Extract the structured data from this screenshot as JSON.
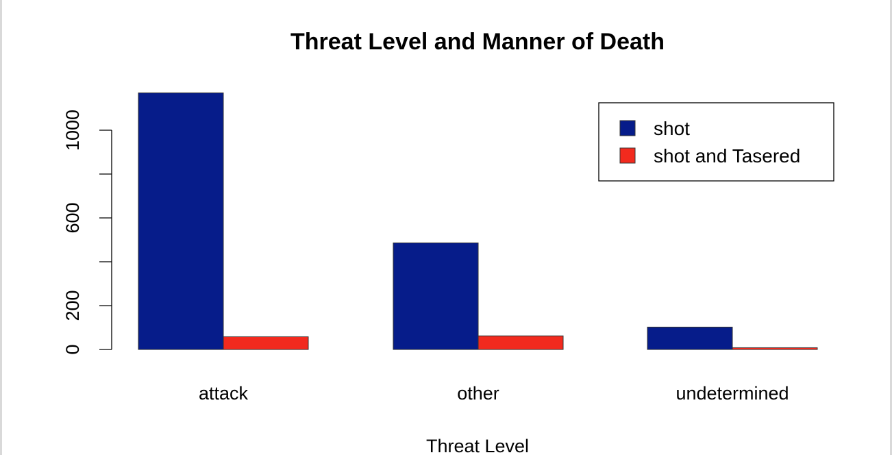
{
  "chart_data": {
    "type": "bar",
    "title": "Threat Level and Manner of Death",
    "xlabel": "Threat Level",
    "ylabel": "",
    "categories": [
      "attack",
      "other",
      "undetermined"
    ],
    "series": [
      {
        "name": "shot",
        "color": "#061c8a",
        "values": [
          1170,
          486,
          102
        ]
      },
      {
        "name": "shot and Tasered",
        "color": "#f22a1e",
        "values": [
          58,
          62,
          8
        ]
      }
    ],
    "yticks": [
      0,
      200,
      600,
      1000
    ],
    "ylim": [
      0,
      1200
    ],
    "grid": false,
    "legend_position": "top-right"
  }
}
